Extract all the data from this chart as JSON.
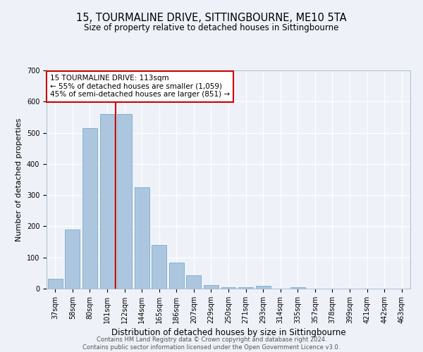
{
  "title": "15, TOURMALINE DRIVE, SITTINGBOURNE, ME10 5TA",
  "subtitle": "Size of property relative to detached houses in Sittingbourne",
  "xlabel": "Distribution of detached houses by size in Sittingbourne",
  "ylabel": "Number of detached properties",
  "footer_line1": "Contains HM Land Registry data © Crown copyright and database right 2024.",
  "footer_line2": "Contains public sector information licensed under the Open Government Licence v3.0.",
  "categories": [
    "37sqm",
    "58sqm",
    "80sqm",
    "101sqm",
    "122sqm",
    "144sqm",
    "165sqm",
    "186sqm",
    "207sqm",
    "229sqm",
    "250sqm",
    "271sqm",
    "293sqm",
    "314sqm",
    "335sqm",
    "357sqm",
    "378sqm",
    "399sqm",
    "421sqm",
    "442sqm",
    "463sqm"
  ],
  "values": [
    32,
    190,
    515,
    560,
    560,
    325,
    140,
    83,
    42,
    12,
    5,
    5,
    10,
    0,
    5,
    0,
    0,
    0,
    0,
    0,
    0
  ],
  "bar_color": "#adc6df",
  "bar_edge_color": "#7aaac8",
  "marker_label_line1": "15 TOURMALINE DRIVE: 113sqm",
  "marker_label_line2": "← 55% of detached houses are smaller (1,059)",
  "marker_label_line3": "45% of semi-detached houses are larger (851) →",
  "marker_color": "#cc0000",
  "ylim": [
    0,
    700
  ],
  "yticks": [
    0,
    100,
    200,
    300,
    400,
    500,
    600,
    700
  ],
  "background_color": "#eef2f8",
  "grid_color": "#ffffff",
  "title_fontsize": 10.5,
  "subtitle_fontsize": 8.5,
  "tick_fontsize": 7,
  "ylabel_fontsize": 8,
  "xlabel_fontsize": 8.5,
  "annotation_fontsize": 7.5,
  "footer_fontsize": 6
}
